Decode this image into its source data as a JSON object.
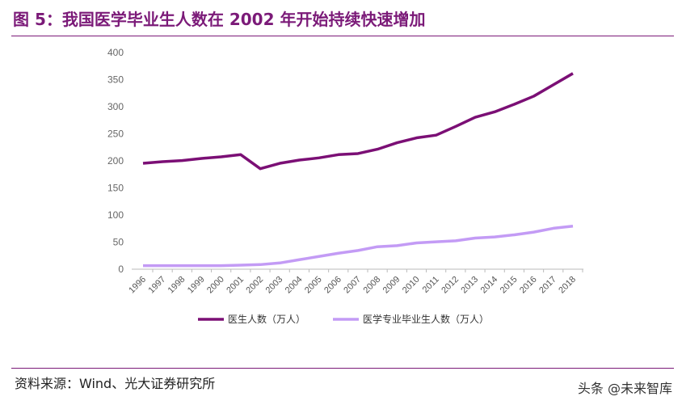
{
  "title": "图 5：我国医学毕业生人数在 2002 年开始持续快速增加",
  "source": "资料来源：Wind、光大证券研究所",
  "watermark": "头条 @未来智库",
  "chart_data": {
    "type": "line",
    "x": [
      "1996",
      "1997",
      "1998",
      "1999",
      "2000",
      "2001",
      "2002",
      "2003",
      "2004",
      "2005",
      "2006",
      "2007",
      "2008",
      "2009",
      "2010",
      "2011",
      "2012",
      "2013",
      "2014",
      "2015",
      "2016",
      "2017",
      "2018"
    ],
    "ylim": [
      0,
      400
    ],
    "yticks": [
      0,
      50,
      100,
      150,
      200,
      250,
      300,
      350,
      400
    ],
    "grid": false,
    "legend": "bottom",
    "series": [
      {
        "name": "医生人数（万人）",
        "color": "#7b0f75",
        "values": [
          194,
          197,
          199,
          203,
          206,
          210,
          184,
          194,
          200,
          204,
          210,
          212,
          220,
          232,
          241,
          246,
          262,
          279,
          289,
          303,
          318,
          339,
          360
        ]
      },
      {
        "name": "医学专业毕业生人数（万人）",
        "color": "#c39bf5",
        "values": [
          5,
          5,
          5,
          5,
          5,
          6,
          7,
          10,
          16,
          22,
          28,
          33,
          40,
          42,
          47,
          49,
          51,
          56,
          58,
          62,
          67,
          74,
          78
        ]
      }
    ]
  }
}
